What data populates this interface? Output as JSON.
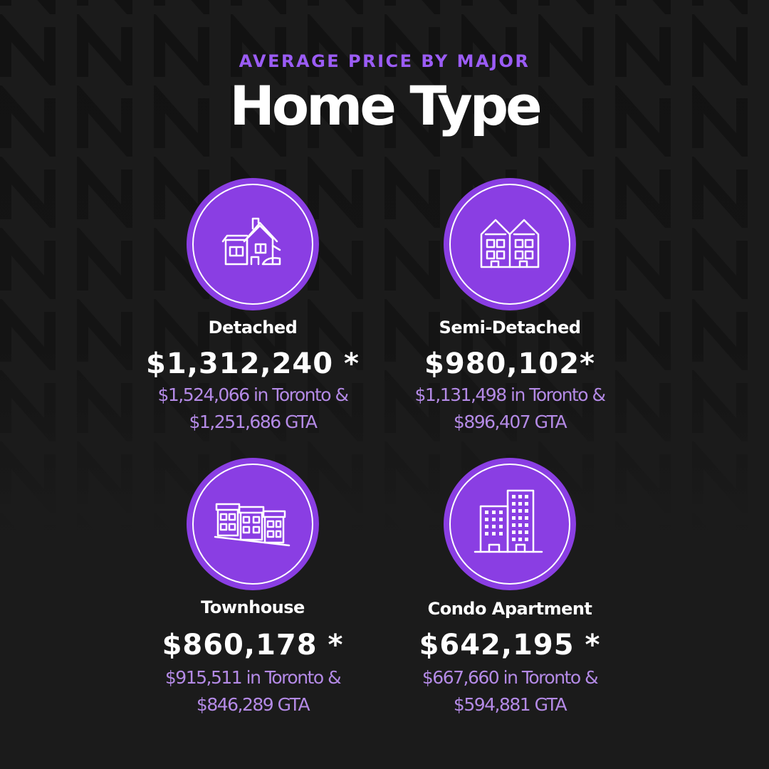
{
  "header": {
    "kicker": "AVERAGE PRICE BY MAJOR",
    "title": "Home Type"
  },
  "colors": {
    "background": "#1b1b1b",
    "accent": "#8a3ee3",
    "kicker": "#9b5cf6",
    "subtext": "#b48ae6"
  },
  "cards": [
    {
      "icon": "detached-house-icon",
      "label": "Detached",
      "price": "$1,312,240 *",
      "toronto": "$1,524,066  in Toronto &",
      "gta": "$1,251,686 GTA"
    },
    {
      "icon": "semi-detached-house-icon",
      "label": "Semi-Detached",
      "price": "$980,102*",
      "toronto": "$1,131,498 in Toronto &",
      "gta": "$896,407 GTA"
    },
    {
      "icon": "townhouse-icon",
      "label": "Townhouse",
      "price": "$860,178  *",
      "toronto": "$915,511  in Toronto &",
      "gta": "$846,289 GTA"
    },
    {
      "icon": "condo-building-icon",
      "label": "Condo Apartment",
      "price": "$642,195  *",
      "toronto": "$667,660 in Toronto &",
      "gta": "$594,881 GTA"
    }
  ]
}
